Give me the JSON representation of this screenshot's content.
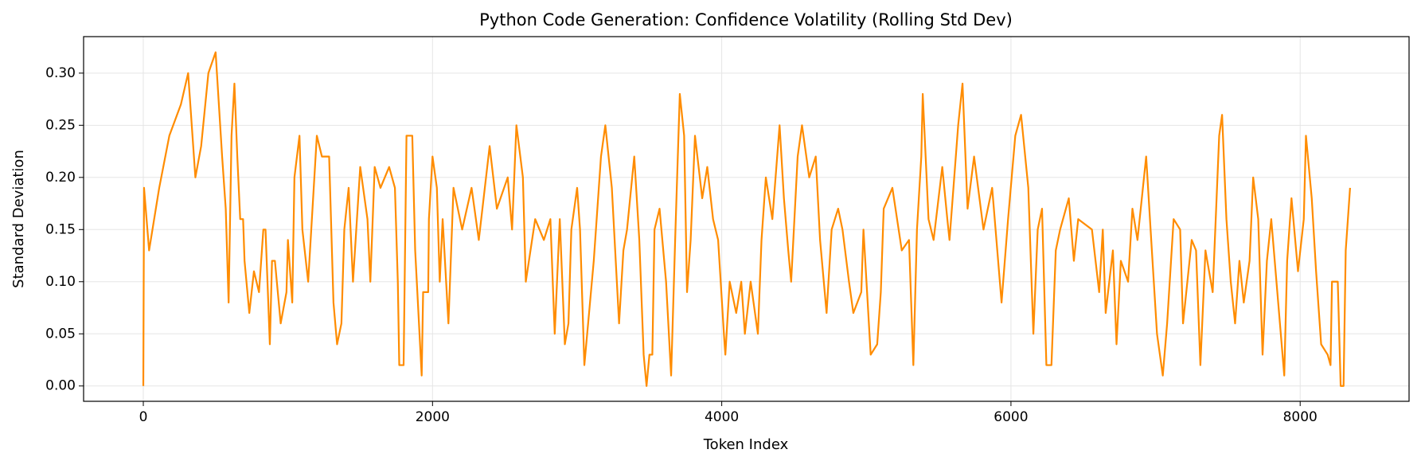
{
  "chart_data": {
    "type": "line",
    "title": "Python Code Generation: Confidence Volatility (Rolling Std Dev)",
    "xlabel": "Token Index",
    "ylabel": "Standard Deviation",
    "xlim": [
      -413,
      8753
    ],
    "ylim": [
      -0.0147,
      0.335
    ],
    "xticks": [
      0,
      2000,
      4000,
      6000,
      8000
    ],
    "yticks": [
      {
        "value": 0,
        "label": "0.00"
      },
      {
        "value": 0.05,
        "label": "0.05"
      },
      {
        "value": 0.1,
        "label": "0.10"
      },
      {
        "value": 0.15,
        "label": "0.15"
      },
      {
        "value": 0.2,
        "label": "0.20"
      },
      {
        "value": 0.25,
        "label": "0.25"
      },
      {
        "value": 0.3,
        "label": "0.30"
      }
    ],
    "grid": true,
    "series": [
      {
        "color": "#ff8c00",
        "x": [
          0,
          5,
          40,
          75,
          110,
          180,
          260,
          310,
          360,
          400,
          450,
          500,
          545,
          570,
          590,
          610,
          630,
          650,
          670,
          690,
          700,
          733,
          765,
          800,
          830,
          845,
          875,
          890,
          910,
          950,
          990,
          1000,
          1030,
          1045,
          1080,
          1100,
          1140,
          1170,
          1200,
          1235,
          1285,
          1315,
          1340,
          1370,
          1390,
          1420,
          1450,
          1500,
          1550,
          1570,
          1600,
          1640,
          1700,
          1740,
          1760,
          1770,
          1800,
          1820,
          1860,
          1880,
          1925,
          1935,
          1970,
          1975,
          2000,
          2030,
          2050,
          2070,
          2110,
          2145,
          2205,
          2270,
          2320,
          2395,
          2445,
          2520,
          2550,
          2580,
          2625,
          2645,
          2710,
          2770,
          2815,
          2845,
          2880,
          2915,
          2940,
          2960,
          3000,
          3020,
          3050,
          3115,
          3165,
          3195,
          3240,
          3290,
          3320,
          3345,
          3395,
          3430,
          3460,
          3480,
          3500,
          3520,
          3535,
          3570,
          3615,
          3650,
          3680,
          3710,
          3740,
          3760,
          3785,
          3815,
          3865,
          3900,
          3940,
          3975,
          4015,
          4025,
          4055,
          4100,
          4135,
          4160,
          4200,
          4250,
          4275,
          4305,
          4350,
          4400,
          4430,
          4460,
          4480,
          4525,
          4555,
          4605,
          4650,
          4680,
          4725,
          4760,
          4805,
          4835,
          4880,
          4910,
          4965,
          4980,
          5005,
          5030,
          5075,
          5100,
          5120,
          5180,
          5245,
          5295,
          5325,
          5350,
          5380,
          5390,
          5430,
          5465,
          5525,
          5560,
          5575,
          5635,
          5665,
          5700,
          5745,
          5810,
          5870,
          5935,
          5980,
          6030,
          6070,
          6120,
          6155,
          6185,
          6215,
          6245,
          6280,
          6310,
          6340,
          6400,
          6435,
          6465,
          6560,
          6610,
          6635,
          6655,
          6705,
          6730,
          6760,
          6810,
          6840,
          6875,
          6935,
          6970,
          7010,
          7050,
          7080,
          7125,
          7170,
          7190,
          7250,
          7280,
          7310,
          7345,
          7395,
          7440,
          7460,
          7490,
          7520,
          7550,
          7580,
          7610,
          7650,
          7675,
          7710,
          7740,
          7770,
          7800,
          7890,
          7910,
          7940,
          7985,
          8025,
          8040,
          8080,
          8110,
          8145,
          8190,
          8210,
          8220,
          8260,
          8280,
          8300,
          8315,
          8345
        ],
        "values": [
          0,
          0.19,
          0.13,
          0.16,
          0.19,
          0.24,
          0.27,
          0.3,
          0.2,
          0.23,
          0.3,
          0.32,
          0.22,
          0.17,
          0.08,
          0.24,
          0.29,
          0.22,
          0.16,
          0.16,
          0.12,
          0.07,
          0.11,
          0.09,
          0.15,
          0.15,
          0.04,
          0.12,
          0.12,
          0.06,
          0.09,
          0.14,
          0.08,
          0.2,
          0.24,
          0.15,
          0.1,
          0.17,
          0.24,
          0.22,
          0.22,
          0.08,
          0.04,
          0.06,
          0.15,
          0.19,
          0.1,
          0.21,
          0.16,
          0.1,
          0.21,
          0.19,
          0.21,
          0.19,
          0.1,
          0.02,
          0.02,
          0.24,
          0.24,
          0.13,
          0.01,
          0.09,
          0.09,
          0.16,
          0.22,
          0.19,
          0.1,
          0.16,
          0.06,
          0.19,
          0.15,
          0.19,
          0.14,
          0.23,
          0.17,
          0.2,
          0.15,
          0.25,
          0.2,
          0.1,
          0.16,
          0.14,
          0.16,
          0.05,
          0.16,
          0.04,
          0.06,
          0.15,
          0.19,
          0.15,
          0.02,
          0.12,
          0.22,
          0.25,
          0.19,
          0.06,
          0.13,
          0.15,
          0.22,
          0.14,
          0.03,
          0,
          0.03,
          0.03,
          0.15,
          0.17,
          0.1,
          0.01,
          0.15,
          0.28,
          0.24,
          0.09,
          0.14,
          0.24,
          0.18,
          0.21,
          0.16,
          0.14,
          0.05,
          0.03,
          0.1,
          0.07,
          0.1,
          0.05,
          0.1,
          0.05,
          0.14,
          0.2,
          0.16,
          0.25,
          0.18,
          0.13,
          0.1,
          0.22,
          0.25,
          0.2,
          0.22,
          0.14,
          0.07,
          0.15,
          0.17,
          0.15,
          0.1,
          0.07,
          0.09,
          0.15,
          0.09,
          0.03,
          0.04,
          0.09,
          0.17,
          0.19,
          0.13,
          0.14,
          0.02,
          0.15,
          0.22,
          0.28,
          0.16,
          0.14,
          0.21,
          0.16,
          0.14,
          0.25,
          0.29,
          0.17,
          0.22,
          0.15,
          0.19,
          0.08,
          0.16,
          0.24,
          0.26,
          0.19,
          0.05,
          0.15,
          0.17,
          0.02,
          0.02,
          0.13,
          0.15,
          0.18,
          0.12,
          0.16,
          0.15,
          0.09,
          0.15,
          0.07,
          0.13,
          0.04,
          0.12,
          0.1,
          0.17,
          0.14,
          0.22,
          0.14,
          0.05,
          0.01,
          0.06,
          0.16,
          0.15,
          0.06,
          0.14,
          0.13,
          0.02,
          0.13,
          0.09,
          0.24,
          0.26,
          0.16,
          0.1,
          0.06,
          0.12,
          0.08,
          0.12,
          0.2,
          0.16,
          0.03,
          0.12,
          0.16,
          0.01,
          0.12,
          0.18,
          0.11,
          0.16,
          0.24,
          0.18,
          0.11,
          0.04,
          0.03,
          0.02,
          0.1,
          0.1,
          0,
          0,
          0.13,
          0.19
        ]
      }
    ]
  }
}
